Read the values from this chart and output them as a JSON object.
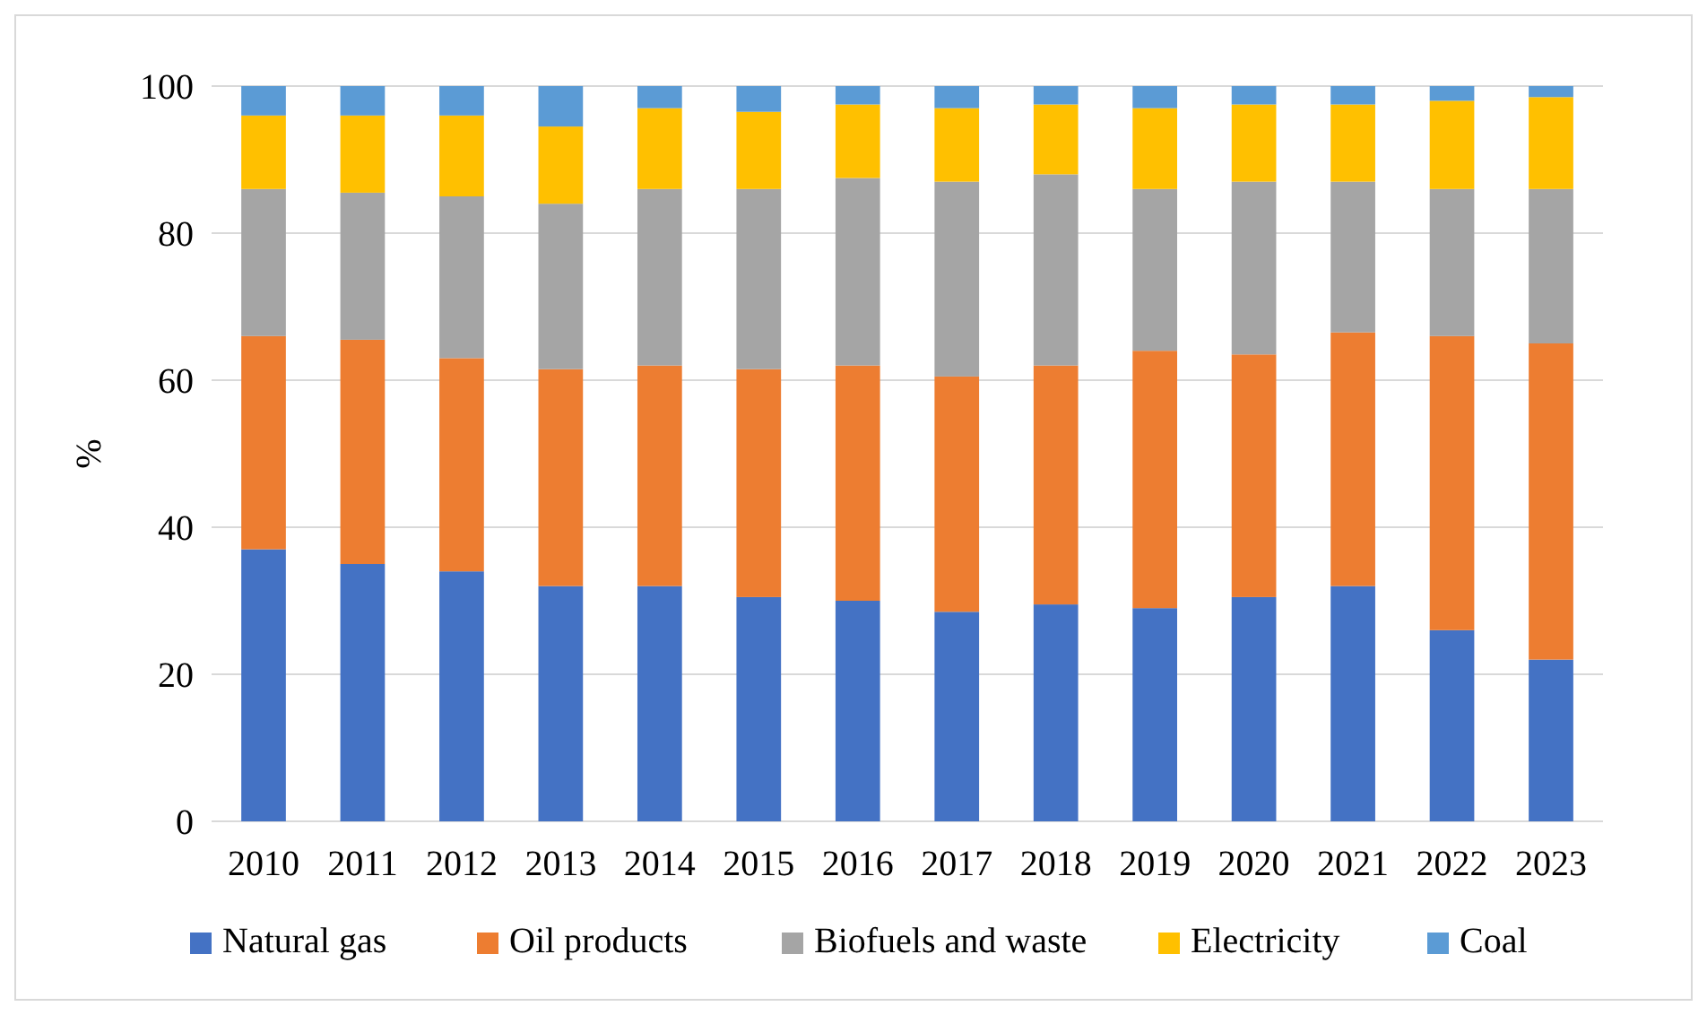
{
  "chart_data": {
    "type": "bar",
    "stacked": true,
    "ylabel": "%",
    "categories": [
      "2010",
      "2011",
      "2012",
      "2013",
      "2014",
      "2015",
      "2016",
      "2017",
      "2018",
      "2019",
      "2020",
      "2021",
      "2022",
      "2023"
    ],
    "series": [
      {
        "name": "Natural gas",
        "color": "#4472c4",
        "values": [
          37,
          35,
          34,
          32,
          32,
          30.5,
          30,
          28.5,
          29.5,
          29,
          30.5,
          32,
          26,
          22
        ]
      },
      {
        "name": "Oil products",
        "color": "#ed7d31",
        "values": [
          29,
          30.5,
          29,
          29.5,
          30,
          31,
          32,
          32,
          32.5,
          35,
          33,
          34.5,
          40,
          43
        ]
      },
      {
        "name": "Biofuels and waste",
        "color": "#a5a5a5",
        "values": [
          20,
          20,
          22,
          22.5,
          24,
          24.5,
          25.5,
          26.5,
          26,
          22,
          23.5,
          20.5,
          20,
          21
        ]
      },
      {
        "name": "Electricity",
        "color": "#ffc000",
        "values": [
          10,
          10.5,
          11,
          10.5,
          11,
          10.5,
          10,
          10,
          9.5,
          11,
          10.5,
          10.5,
          12,
          12.5
        ]
      },
      {
        "name": "Coal",
        "color": "#5b9bd5",
        "values": [
          4,
          4,
          4,
          5.5,
          3,
          3.5,
          2.5,
          3,
          2.5,
          3,
          2.5,
          2.5,
          2,
          1.5
        ]
      }
    ],
    "ylim": [
      0,
      100
    ],
    "yticks": [
      0,
      20,
      40,
      60,
      80,
      100
    ],
    "grid": "y",
    "legend": "bottom"
  }
}
